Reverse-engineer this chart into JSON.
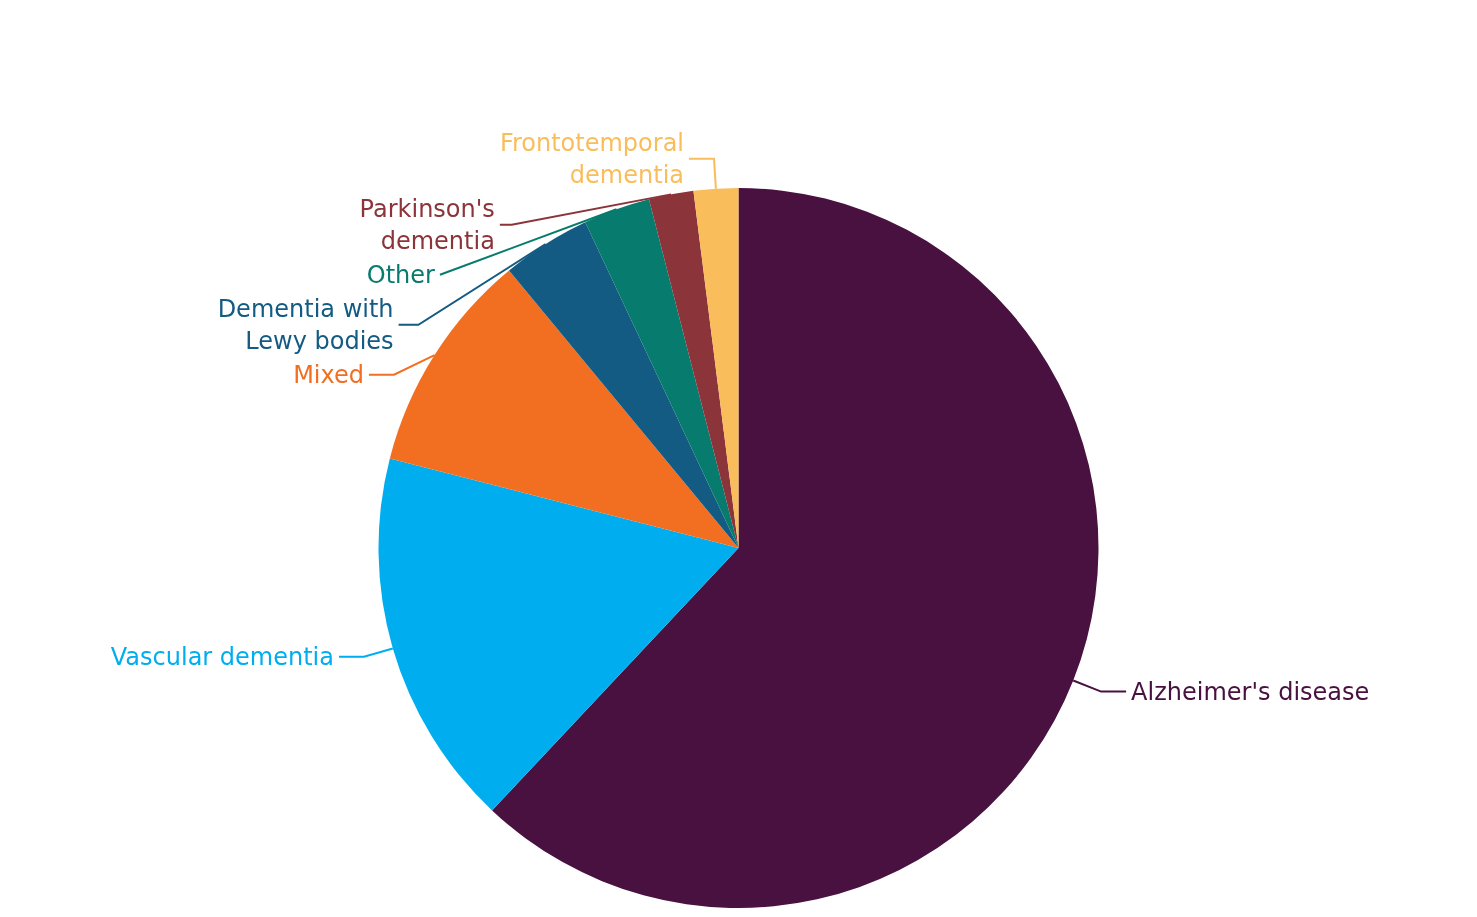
{
  "chart_data": {
    "type": "pie",
    "categories": [
      "Alzheimer's disease",
      "Vascular dementia",
      "Mixed",
      "Dementia with\nLewy bodies",
      "Other",
      "Parkinson's\ndementia",
      "Frontotemporal\ndementia"
    ],
    "values": [
      62,
      17,
      10,
      4,
      3,
      2,
      2
    ],
    "colors": [
      "#48113f",
      "#00aeef",
      "#f26f21",
      "#135b82",
      "#077b6d",
      "#8b3439",
      "#f9bd5b"
    ],
    "legend": false
  }
}
